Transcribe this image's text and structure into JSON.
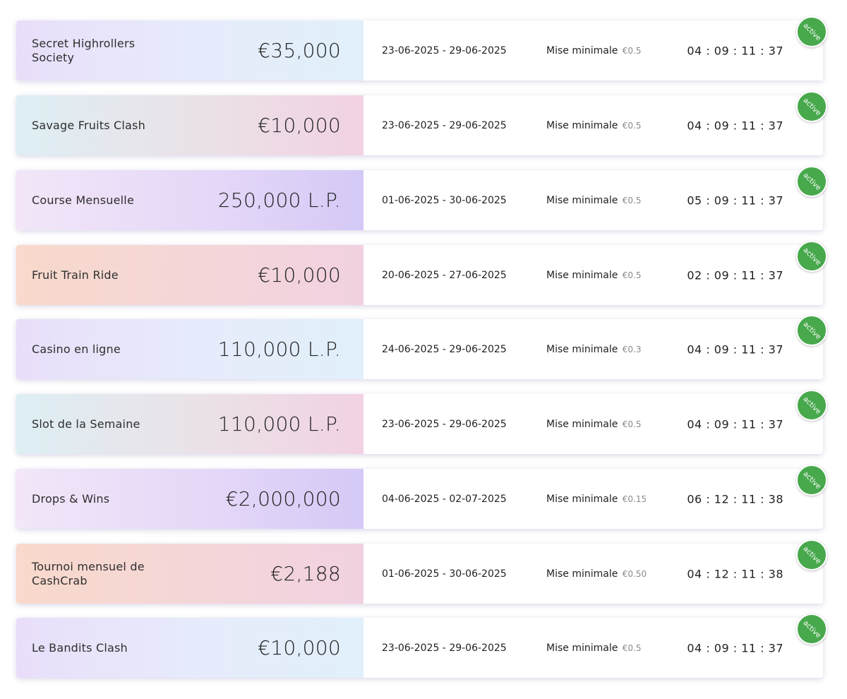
{
  "tournaments": [
    {
      "name": "Secret Highrollers Society",
      "prize": "€35,000",
      "dates": "23-06-2025 - 29-06-2025",
      "min_bet_label": "Mise minimale",
      "min_bet": "€0.5",
      "timer": "04 : 09 : 11 : 37",
      "status": "active"
    },
    {
      "name": "Savage Fruits Clash",
      "prize": "€10,000",
      "dates": "23-06-2025 - 29-06-2025",
      "min_bet_label": "Mise minimale",
      "min_bet": "€0.5",
      "timer": "04 : 09 : 11 : 37",
      "status": "active"
    },
    {
      "name": "Course Mensuelle",
      "prize": "250,000 L.P.",
      "dates": "01-06-2025 - 30-06-2025",
      "min_bet_label": "Mise minimale",
      "min_bet": "€0.5",
      "timer": "05 : 09 : 11 : 37",
      "status": "active"
    },
    {
      "name": "Fruit Train Ride",
      "prize": "€10,000",
      "dates": "20-06-2025 - 27-06-2025",
      "min_bet_label": "Mise minimale",
      "min_bet": "€0.5",
      "timer": "02 : 09 : 11 : 37",
      "status": "active"
    },
    {
      "name": "Casino en ligne",
      "prize": "110,000 L.P.",
      "dates": "24-06-2025 - 29-06-2025",
      "min_bet_label": "Mise minimale",
      "min_bet": "€0.3",
      "timer": "04 : 09 : 11 : 37",
      "status": "active"
    },
    {
      "name": "Slot de la Semaine",
      "prize": "110,000 L.P.",
      "dates": "23-06-2025 - 29-06-2025",
      "min_bet_label": "Mise minimale",
      "min_bet": "€0.5",
      "timer": "04 : 09 : 11 : 37",
      "status": "active"
    },
    {
      "name": "Drops & Wins",
      "prize": "€2,000,000",
      "dates": "04-06-2025 - 02-07-2025",
      "min_bet_label": "Mise minimale",
      "min_bet": "€0.15",
      "timer": "06 : 12 : 11 : 38",
      "status": "active"
    },
    {
      "name": "Tournoi mensuel de CashCrab",
      "prize": "€2,188",
      "dates": "01-06-2025 - 30-06-2025",
      "min_bet_label": "Mise minimale",
      "min_bet": "€0.50",
      "timer": "04 : 12 : 11 : 38",
      "status": "active"
    },
    {
      "name": "Le Bandits Clash",
      "prize": "€10,000",
      "dates": "23-06-2025 - 29-06-2025",
      "min_bet_label": "Mise minimale",
      "min_bet": "€0.5",
      "timer": "04 : 09 : 11 : 37",
      "status": "active"
    }
  ],
  "colors": {
    "status_active": "#47a84c",
    "gradients": [
      "lavender-blue",
      "teal-pink",
      "lilac-purple",
      "peach-pink"
    ]
  }
}
